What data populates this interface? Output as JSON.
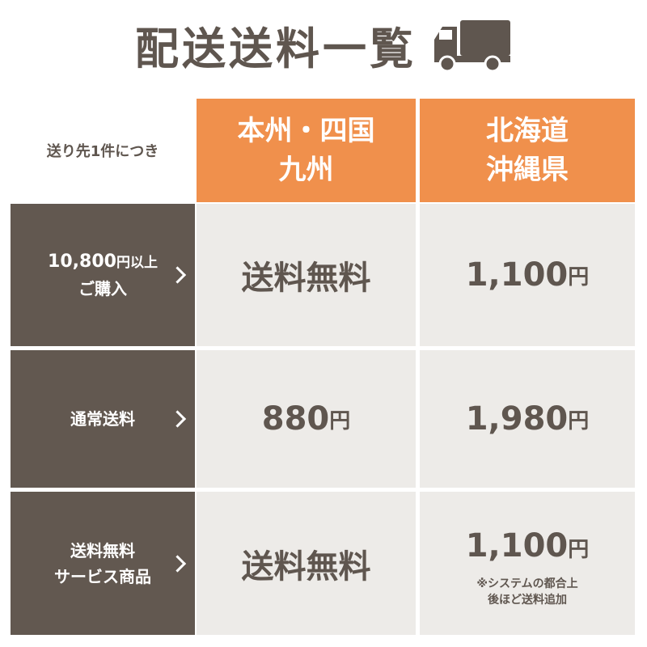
{
  "title": "配送送料一覧",
  "icon": "truck-icon",
  "colors": {
    "accent": "#f0904c",
    "dark": "#625850",
    "cell": "#edebe8",
    "text": "#5f564f"
  },
  "corner_label": "送り先1件につき",
  "columns": [
    {
      "line1": "本州・四国",
      "line2": "九州"
    },
    {
      "line1": "北海道",
      "line2": "沖縄県"
    }
  ],
  "rows": [
    {
      "label1": "10,800",
      "label1_unit": "円以上",
      "label2": "ご購入",
      "values": [
        {
          "text": "送料無料",
          "unit": ""
        },
        {
          "text": "1,100",
          "unit": "円"
        }
      ]
    },
    {
      "label1": "通常送料",
      "label1_unit": "",
      "label2": "",
      "values": [
        {
          "text": "880",
          "unit": "円"
        },
        {
          "text": "1,980",
          "unit": "円"
        }
      ]
    },
    {
      "label1": "送料無料",
      "label1_unit": "",
      "label2": "サービス商品",
      "values": [
        {
          "text": "送料無料",
          "unit": ""
        },
        {
          "text": "1,100",
          "unit": "円"
        }
      ]
    }
  ],
  "note": {
    "line1": "※システムの都合上",
    "line2": "後ほど送料追加"
  }
}
